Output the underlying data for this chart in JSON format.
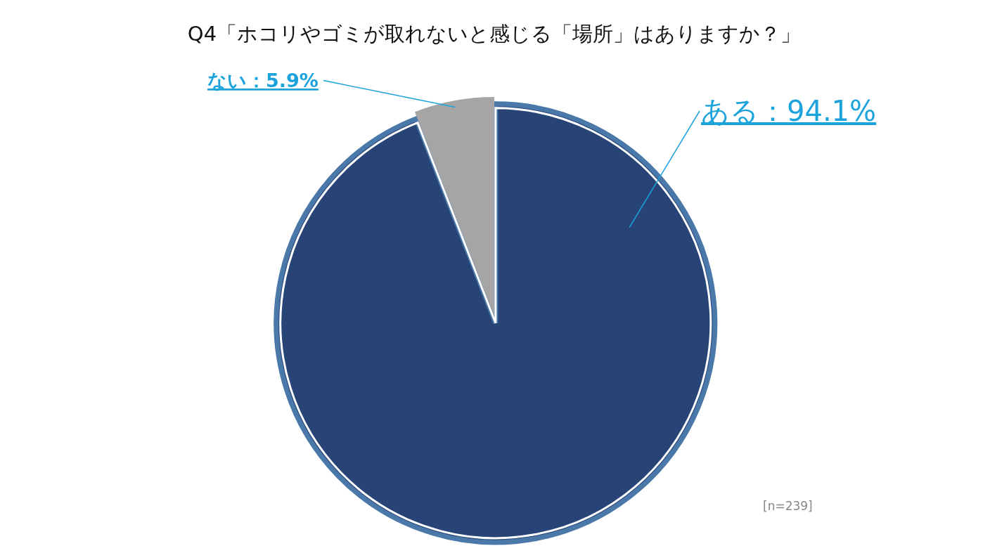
{
  "chart_data": {
    "type": "pie",
    "title": "Q4「ホコリやゴミが取れないと感じる「場所」はありますか？」",
    "categories": [
      "ある",
      "ない"
    ],
    "values": [
      94.1,
      5.9
    ],
    "colors": [
      "#284476",
      "#a5a5a5"
    ],
    "value_labels": [
      "：94.1%",
      "：5.9%"
    ],
    "annotations": [
      "[n=239]"
    ]
  }
}
